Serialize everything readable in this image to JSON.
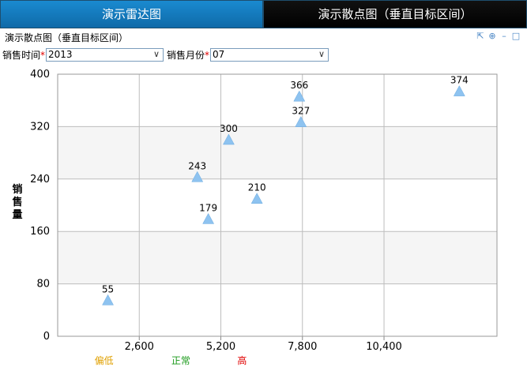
{
  "tabs": [
    {
      "label": "演示雷达图"
    },
    {
      "label": "演示散点图（垂直目标区间）"
    }
  ],
  "panel": {
    "title": "演示散点图（垂直目标区间）",
    "tools": [
      "export-icon",
      "target-icon",
      "minimize-icon",
      "maximize-icon"
    ]
  },
  "filters": {
    "year_label": "销售时间",
    "year_value": "2013",
    "month_label": "销售月份",
    "month_value": "07",
    "required_mark": "*"
  },
  "chart_data": {
    "type": "scatter",
    "ylabel": "销售量",
    "xlabel": "",
    "ylim": [
      0,
      400
    ],
    "yticks": [
      0,
      80,
      160,
      240,
      320,
      400
    ],
    "xlim": [
      0,
      14000
    ],
    "xticks": [
      2600,
      5200,
      7800,
      10400
    ],
    "xtick_labels": [
      "2,600",
      "5,200",
      "7,800",
      "10,400"
    ],
    "grid": true,
    "marker": "triangle",
    "marker_color": "#8ec3f0",
    "points": [
      {
        "x": 1600,
        "y": 55,
        "label": "55"
      },
      {
        "x": 4450,
        "y": 243,
        "label": "243"
      },
      {
        "x": 4800,
        "y": 179,
        "label": "179"
      },
      {
        "x": 5450,
        "y": 300,
        "label": "300"
      },
      {
        "x": 6350,
        "y": 210,
        "label": "210"
      },
      {
        "x": 7700,
        "y": 366,
        "label": "366"
      },
      {
        "x": 7750,
        "y": 327,
        "label": "327"
      },
      {
        "x": 12800,
        "y": 374,
        "label": "374"
      }
    ],
    "bands": [
      {
        "name": "偏低",
        "from": 0,
        "to": 2950,
        "color": "#ffe896",
        "label_color": "#e0a000"
      },
      {
        "name": "正常",
        "from": 2950,
        "to": 4900,
        "color": "#98d898",
        "label_color": "#1a9a1a"
      },
      {
        "name": "高",
        "from": 4900,
        "to": 6850,
        "color": "#ff9898",
        "label_color": "#e00000"
      }
    ]
  }
}
